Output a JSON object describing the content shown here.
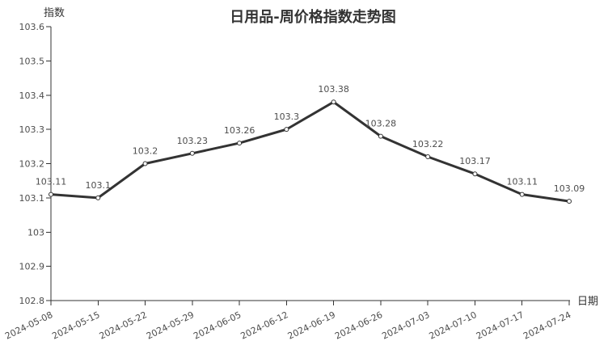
{
  "page": {
    "background": "#ffffff"
  },
  "chart_data": {
    "type": "line",
    "title": "日用品-周价格指数走势图",
    "y_axis_name": "指数",
    "x_axis_name": "日期",
    "categories": [
      "2024-05-08",
      "2024-05-15",
      "2024-05-22",
      "2024-05-29",
      "2024-06-05",
      "2024-06-12",
      "2024-06-19",
      "2024-06-26",
      "2024-07-03",
      "2024-07-10",
      "2024-07-17",
      "2024-07-24"
    ],
    "values": [
      103.11,
      103.1,
      103.2,
      103.23,
      103.26,
      103.3,
      103.38,
      103.28,
      103.22,
      103.17,
      103.11,
      103.09
    ],
    "point_labels": [
      "103.11",
      "103.1",
      "103.2",
      "103.23",
      "103.26",
      "103.3",
      "103.38",
      "103.28",
      "103.22",
      "103.17",
      "103.11",
      "103.09"
    ],
    "y_ticks": [
      "102.8",
      "102.9",
      "103",
      "103.1",
      "103.2",
      "103.3",
      "103.4",
      "103.5",
      "103.6"
    ],
    "ylim": [
      102.8,
      103.6
    ],
    "grid": false,
    "legend": false,
    "x_label_rotation": -26,
    "colors": {
      "line": "#333333",
      "axis": "#333333",
      "title": "#333333",
      "tick_label": "#4d4d4d",
      "point_label": "#4d4d4d",
      "marker_fill": "#ffffff",
      "marker_stroke": "#333333"
    }
  }
}
